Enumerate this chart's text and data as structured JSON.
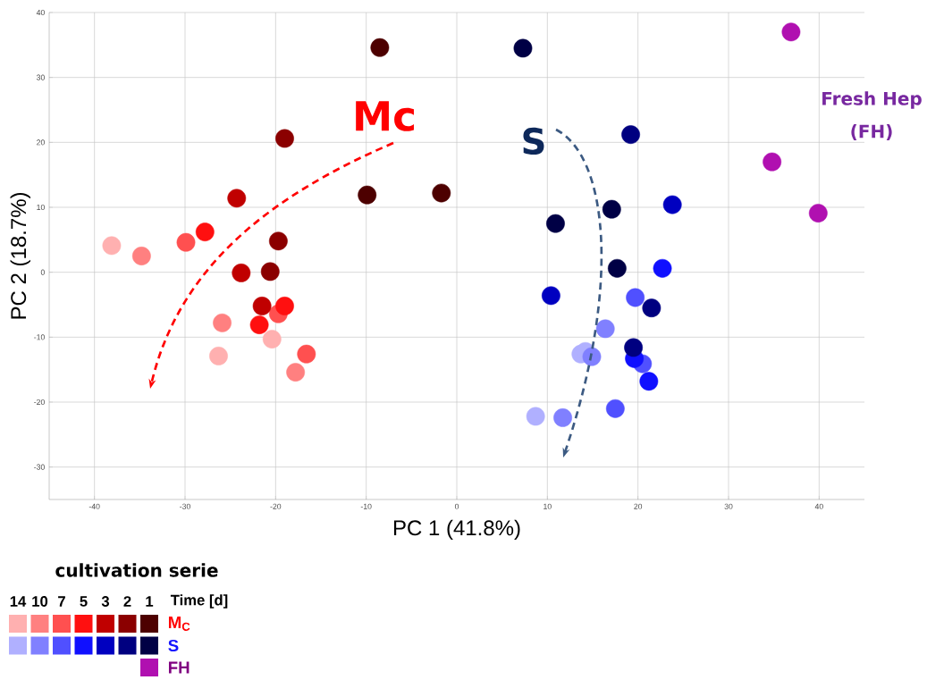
{
  "chart_data": {
    "type": "scatter",
    "xlabel": "PC 1 (41.8%)",
    "ylabel": "PC 2 (18.7%)",
    "xlim": [
      -45,
      45
    ],
    "ylim": [
      -35,
      40
    ],
    "xticks": [
      -40,
      -30,
      -20,
      -10,
      0,
      10,
      20,
      30,
      40
    ],
    "yticks": [
      -30,
      -20,
      -10,
      0,
      10,
      20,
      30,
      40
    ],
    "grid": true,
    "marker": "circle",
    "legend_title": "cultivation serie",
    "annotations": [
      "Mc",
      "S",
      "Fresh Hep",
      "(FH)",
      "14",
      "10",
      "7",
      "5",
      "3",
      "2",
      "1",
      "Time [d]",
      "M$_{C}$",
      "S",
      "FH"
    ],
    "series": [
      {
        "color": "#ffb0b0",
        "x": [
          -38.1,
          -26.3,
          -20.4
        ],
        "values": [
          4.1,
          -12.9,
          -10.3
        ]
      },
      {
        "color": "#ff8080",
        "x": [
          -34.8,
          -25.9,
          -17.8
        ],
        "values": [
          2.5,
          -7.8,
          -15.4
        ]
      },
      {
        "color": "#ff5050",
        "x": [
          -29.9,
          -19.7,
          -16.6
        ],
        "values": [
          4.6,
          -6.4,
          -12.6
        ]
      },
      {
        "color": "#ff1010",
        "x": [
          -27.8,
          -19.0,
          -21.8
        ],
        "values": [
          6.2,
          -5.2,
          -8.1
        ]
      },
      {
        "color": "#c00000",
        "x": [
          -24.3,
          -23.8,
          -21.5
        ],
        "values": [
          11.4,
          -0.1,
          -5.2
        ]
      },
      {
        "color": "#8b0000",
        "x": [
          -19.0,
          -19.7,
          -20.6
        ],
        "values": [
          20.6,
          4.8,
          0.1
        ]
      },
      {
        "color": "#4d0000",
        "x": [
          -8.5,
          -9.9,
          -1.7
        ],
        "values": [
          34.6,
          11.9,
          12.2
        ]
      },
      {
        "color": "#b0b0ff",
        "x": [
          13.7,
          14.2,
          8.7
        ],
        "values": [
          -12.6,
          -12.2,
          -22.2
        ]
      },
      {
        "color": "#8080ff",
        "x": [
          16.4,
          14.9,
          11.7
        ],
        "values": [
          -8.7,
          -13.0,
          -22.4
        ]
      },
      {
        "color": "#5050ff",
        "x": [
          19.7,
          20.5,
          17.5
        ],
        "values": [
          -3.9,
          -14.1,
          -21.0
        ]
      },
      {
        "color": "#1010ff",
        "x": [
          22.7,
          19.6,
          21.2
        ],
        "values": [
          0.6,
          -13.3,
          -16.8
        ]
      },
      {
        "color": "#0000c0",
        "x": [
          23.8,
          10.4
        ],
        "values": [
          10.4,
          -3.6
        ]
      },
      {
        "color": "#000080",
        "x": [
          19.2,
          21.5,
          19.5
        ],
        "values": [
          21.2,
          -5.5,
          -11.6
        ]
      },
      {
        "color": "#000045",
        "x": [
          7.3,
          10.9,
          17.1,
          17.7
        ],
        "values": [
          34.5,
          7.5,
          9.7,
          0.6
        ]
      },
      {
        "color": "#b010b0",
        "x": [
          36.9,
          34.8,
          39.9
        ],
        "values": [
          37.0,
          17.0,
          9.1
        ]
      }
    ]
  }
}
